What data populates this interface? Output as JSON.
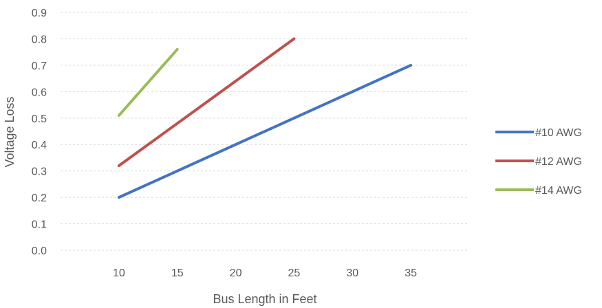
{
  "chart_data": {
    "type": "line",
    "title": "",
    "xlabel": "Bus Length in Feet",
    "ylabel": "Voltage Loss",
    "xlim": [
      5,
      40
    ],
    "ylim": [
      0,
      0.9
    ],
    "x_ticks": [
      10,
      15,
      20,
      25,
      30,
      35
    ],
    "x_tick_labels": [
      "10",
      "15",
      "20",
      "25",
      "30",
      "35"
    ],
    "y_ticks": [
      0,
      0.1,
      0.2,
      0.3,
      0.4,
      0.5,
      0.6,
      0.7,
      0.8,
      0.9
    ],
    "y_tick_labels": [
      "0.0",
      "0.1",
      "0.2",
      "0.3",
      "0.4",
      "0.5",
      "0.6",
      "0.7",
      "0.8",
      "0.9"
    ],
    "grid": true,
    "legend_position": "right",
    "series": [
      {
        "name": "#10 AWG",
        "color": "#4472c4",
        "x": [
          10,
          35
        ],
        "y": [
          0.2,
          0.7
        ]
      },
      {
        "name": "#12 AWG",
        "color": "#c0504d",
        "x": [
          10,
          25
        ],
        "y": [
          0.32,
          0.8
        ]
      },
      {
        "name": "#14 AWG",
        "color": "#9bbb59",
        "x": [
          10,
          15
        ],
        "y": [
          0.51,
          0.76
        ]
      }
    ]
  }
}
